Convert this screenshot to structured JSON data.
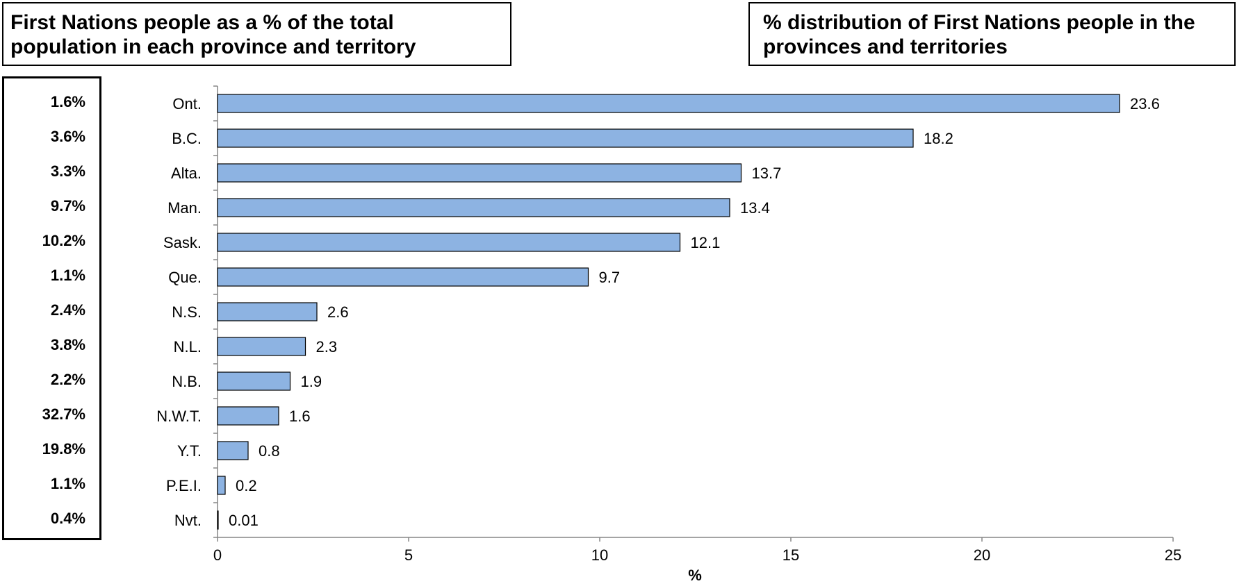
{
  "left_title": "First Nations people as a % of the total population in each province and territory",
  "right_title": "% distribution of First Nations people in the  provinces and territories",
  "share_of_population": [
    "1.6%",
    "3.6%",
    "3.3%",
    "9.7%",
    "10.2%",
    "1.1%",
    "2.4%",
    "3.8%",
    "2.2%",
    "32.7%",
    "19.8%",
    "1.1%",
    "0.4%"
  ],
  "chart_data": {
    "type": "bar",
    "orientation": "horizontal",
    "title": "% distribution of First Nations people in the  provinces and territories",
    "categories": [
      "Ont.",
      "B.C.",
      "Alta.",
      "Man.",
      "Sask.",
      "Que.",
      "N.S.",
      "N.L.",
      "N.B.",
      "N.W.T.",
      "Y.T.",
      "P.E.I.",
      "Nvt."
    ],
    "values": [
      23.6,
      18.2,
      13.7,
      13.4,
      12.1,
      9.7,
      2.6,
      2.3,
      1.9,
      1.6,
      0.8,
      0.2,
      0.01
    ],
    "data_labels": [
      "23.6",
      "18.2",
      "13.7",
      "13.4",
      "12.1",
      "9.7",
      "2.6",
      "2.3",
      "1.9",
      "1.6",
      "0.8",
      "0.2",
      "0.01"
    ],
    "xlabel": "%",
    "ylabel": "",
    "xlim": [
      0,
      25
    ],
    "xticks": [
      0,
      5,
      10,
      15,
      20,
      25
    ],
    "grid": false,
    "bar_color": "#8DB3E2",
    "bar_edge_color": "#000000"
  }
}
